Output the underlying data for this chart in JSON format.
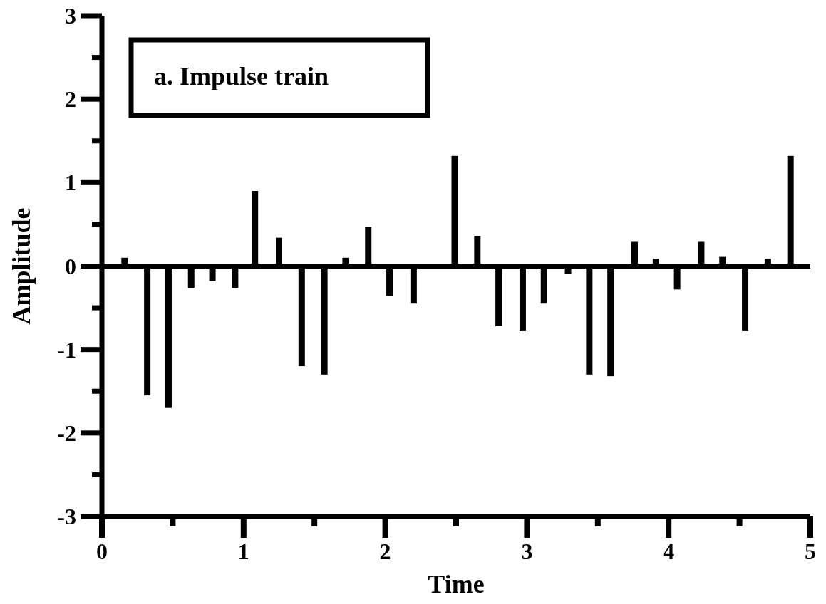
{
  "chart_data": {
    "type": "bar",
    "title": "a. Impulse train",
    "xlabel": "Time",
    "ylabel": "Amplitude",
    "x": [
      0.16,
      0.32,
      0.47,
      0.63,
      0.78,
      0.94,
      1.08,
      1.25,
      1.41,
      1.57,
      1.72,
      1.88,
      2.03,
      2.2,
      2.49,
      2.65,
      2.8,
      2.97,
      3.12,
      3.29,
      3.44,
      3.59,
      3.76,
      3.91,
      4.06,
      4.23,
      4.38,
      4.54,
      4.7,
      4.86
    ],
    "values": [
      0.1,
      -1.55,
      -1.7,
      -0.26,
      -0.18,
      -0.26,
      0.9,
      0.34,
      -1.2,
      -1.3,
      0.1,
      0.47,
      -0.36,
      -0.45,
      1.32,
      0.36,
      -0.72,
      -0.78,
      -0.45,
      -0.09,
      -1.3,
      -1.32,
      0.29,
      0.09,
      -0.28,
      0.29,
      0.11,
      -0.78,
      0.09,
      1.32
    ],
    "color": "#000000",
    "xlim": [
      0,
      5
    ],
    "xticks": [
      0,
      {
        "value": 0.5,
        "label": null
      },
      1,
      {
        "value": 1.5,
        "label": null
      },
      2,
      {
        "value": 2.5,
        "label": null
      },
      3,
      {
        "value": 3.5,
        "label": null
      },
      4,
      {
        "value": 4.5,
        "label": null
      },
      5
    ],
    "ylim": [
      -3,
      3
    ],
    "yticks": [
      -3,
      {
        "value": -2.5,
        "label": null
      },
      -2,
      {
        "value": -1.5,
        "label": null
      },
      -1,
      {
        "value": -0.5,
        "label": null
      },
      0,
      {
        "value": 0.5,
        "label": null
      },
      1,
      {
        "value": 1.5,
        "label": null
      },
      2,
      {
        "value": 2.5,
        "label": null
      },
      3
    ],
    "ref_lines": [
      {
        "axis": "y",
        "value": 0,
        "color": "#000000"
      }
    ]
  }
}
